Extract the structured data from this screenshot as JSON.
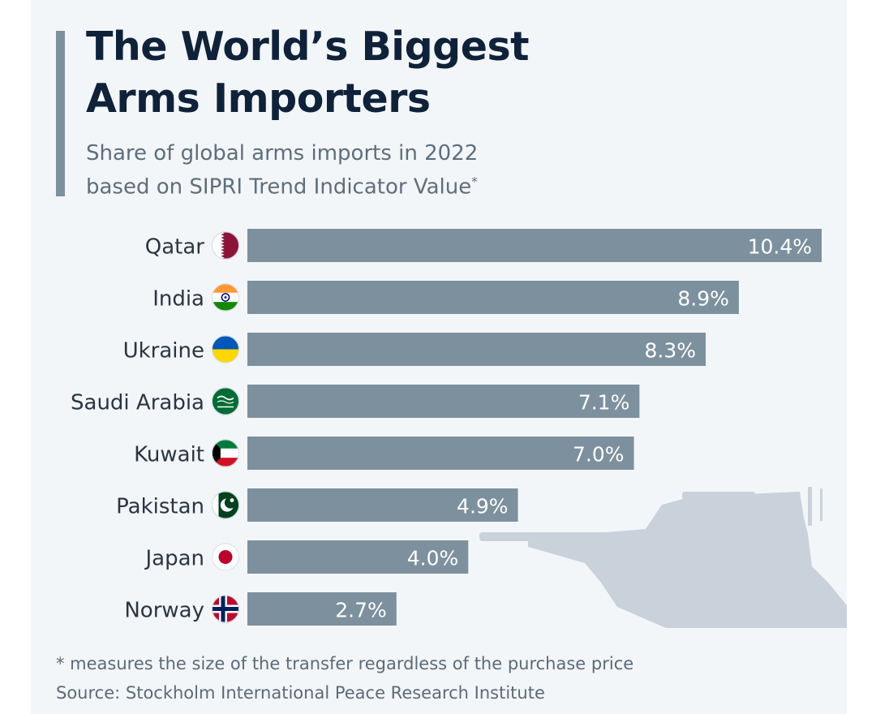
{
  "header": {
    "title_line1": "The World’s Biggest",
    "title_line2": "Arms Importers",
    "subtitle_line1": "Share of global arms imports in 2022",
    "subtitle_line2": "based on SIPRI Trend Indicator Value",
    "subtitle_marker": "*"
  },
  "footer": {
    "footnote": "* measures the size of the transfer regardless of the purchase price",
    "source": "Source: Stockholm International Peace Research Institute"
  },
  "colors": {
    "bar": "#7d909e",
    "title": "#0f2239",
    "background": "#f3f6f9",
    "tank": "#c9d2da"
  },
  "chart_data": {
    "type": "bar",
    "orientation": "horizontal",
    "categories": [
      "Qatar",
      "India",
      "Ukraine",
      "Saudi Arabia",
      "Kuwait",
      "Pakistan",
      "Japan",
      "Norway"
    ],
    "values": [
      10.4,
      8.9,
      8.3,
      7.1,
      7.0,
      4.9,
      4.0,
      2.7
    ],
    "value_labels": [
      "10.4%",
      "8.9%",
      "8.3%",
      "7.1%",
      "7.0%",
      "4.9%",
      "4.0%",
      "2.7%"
    ],
    "flags": [
      "qatar-flag-icon",
      "india-flag-icon",
      "ukraine-flag-icon",
      "saudi-arabia-flag-icon",
      "kuwait-flag-icon",
      "pakistan-flag-icon",
      "japan-flag-icon",
      "norway-flag-icon"
    ],
    "unit": "%",
    "xlim": [
      0,
      10.4
    ],
    "grid": false,
    "legend": "none"
  }
}
